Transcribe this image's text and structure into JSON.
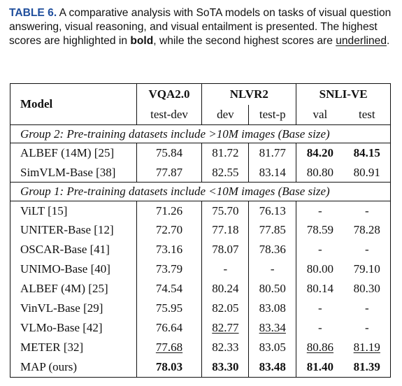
{
  "caption": {
    "label": "TABLE 6.",
    "text_1": " A comparative analysis with SoTA models on tasks of visual question answering, visual reasoning, and visual entailment is presented. The highest scores are highlighted in ",
    "bold_word": "bold",
    "text_2": ", while the second highest scores are ",
    "underline_word": "underlined",
    "text_3": "."
  },
  "table": {
    "header": {
      "model": "Model",
      "vqa": "VQA2.0",
      "nlvr": "NLVR2",
      "snli": "SNLI-VE",
      "vqa_split": "test-dev",
      "nlvr_dev": "dev",
      "nlvr_test": "test-p",
      "snli_val": "val",
      "snli_test": "test"
    },
    "group2_title": "Group 2: Pre-training datasets include >10M images (Base size)",
    "group2": [
      {
        "model": "ALBEF (14M) [25]",
        "vqa": "75.84",
        "nlvr_dev": "81.72",
        "nlvr_test": "81.77",
        "snli_val": "84.20",
        "snli_test": "84.15"
      },
      {
        "model": "SimVLM-Base [38]",
        "vqa": "77.87",
        "nlvr_dev": "82.55",
        "nlvr_test": "83.14",
        "snli_val": "80.80",
        "snli_test": "80.91"
      }
    ],
    "group1_title": "Group 1: Pre-training datasets include <10M images (Base size)",
    "group1": [
      {
        "model": "ViLT [15]",
        "vqa": "71.26",
        "nlvr_dev": "75.70",
        "nlvr_test": "76.13",
        "snli_val": "-",
        "snli_test": "-"
      },
      {
        "model": "UNITER-Base [12]",
        "vqa": "72.70",
        "nlvr_dev": "77.18",
        "nlvr_test": "77.85",
        "snli_val": "78.59",
        "snli_test": "78.28"
      },
      {
        "model": "OSCAR-Base [41]",
        "vqa": "73.16",
        "nlvr_dev": "78.07",
        "nlvr_test": "78.36",
        "snli_val": "-",
        "snli_test": "-"
      },
      {
        "model": "UNIMO-Base [40]",
        "vqa": "73.79",
        "nlvr_dev": "-",
        "nlvr_test": "-",
        "snli_val": "80.00",
        "snli_test": "79.10"
      },
      {
        "model": "ALBEF (4M) [25]",
        "vqa": "74.54",
        "nlvr_dev": "80.24",
        "nlvr_test": "80.50",
        "snli_val": "80.14",
        "snli_test": "80.30"
      },
      {
        "model": "VinVL-Base [29]",
        "vqa": "75.95",
        "nlvr_dev": "82.05",
        "nlvr_test": "83.08",
        "snli_val": "-",
        "snli_test": "-"
      },
      {
        "model": "VLMo-Base [42]",
        "vqa": "76.64",
        "nlvr_dev": "82.77",
        "nlvr_test": "83.34",
        "snli_val": "-",
        "snli_test": "-"
      },
      {
        "model": "METER [32]",
        "vqa": "77.68",
        "nlvr_dev": "82.33",
        "nlvr_test": "83.05",
        "snli_val": "80.86",
        "snli_test": "81.19"
      },
      {
        "model": "MAP (ours)",
        "vqa": "78.03",
        "nlvr_dev": "83.30",
        "nlvr_test": "83.48",
        "snli_val": "81.40",
        "snli_test": "81.39"
      }
    ]
  }
}
